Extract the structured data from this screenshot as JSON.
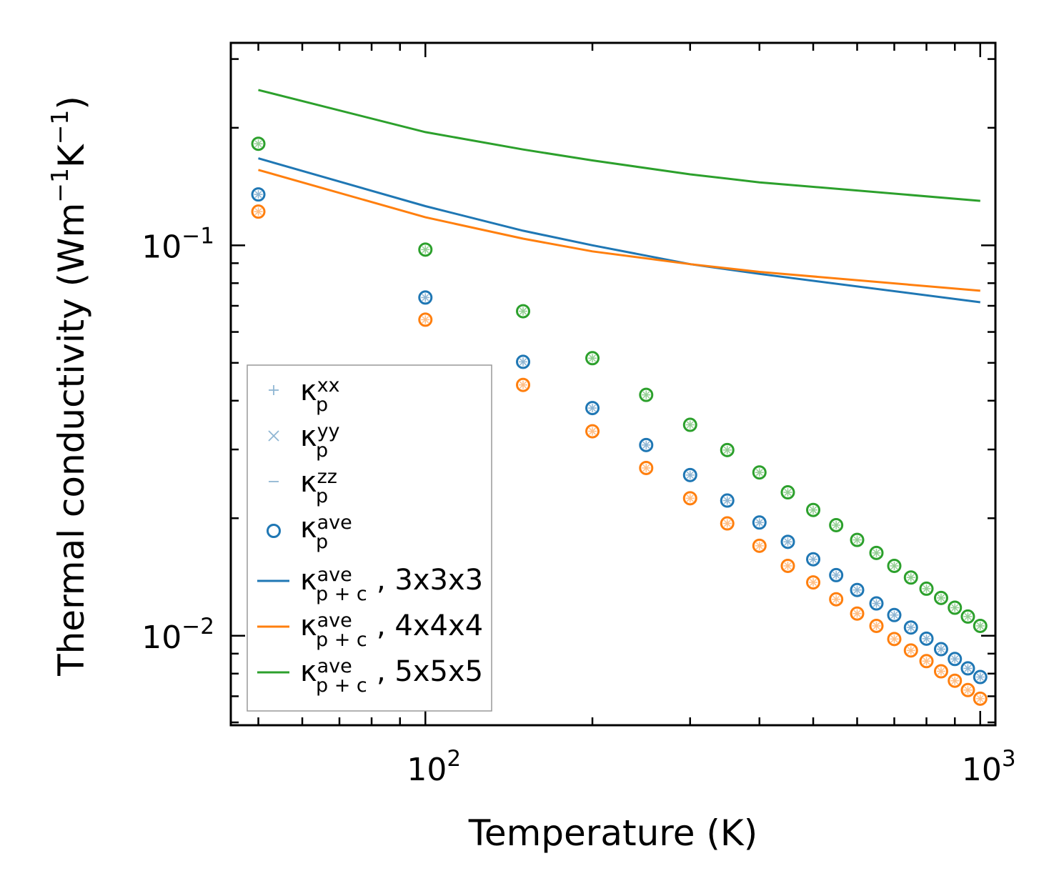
{
  "chart_data": {
    "type": "scatter",
    "xscale": "log",
    "yscale": "log",
    "xlim": [
      44.6,
      1065
    ],
    "ylim": [
      0.0059,
      0.33
    ],
    "xlabel": "Temperature (K)",
    "ylabel": {
      "text": "Thermal conductivity (Wm",
      "sup1": "−1",
      "mid": "K",
      "sup2": "−1",
      "end": ")"
    },
    "xticks": [
      {
        "value": 100,
        "base": "10",
        "exp": "2"
      },
      {
        "value": 1000,
        "base": "10",
        "exp": "3"
      }
    ],
    "yticks": [
      {
        "value": 0.1,
        "base": "10",
        "exp": "−1"
      },
      {
        "value": 0.01,
        "base": "10",
        "exp": "−2"
      }
    ],
    "x": [
      50,
      100,
      150,
      200,
      250,
      300,
      350,
      400,
      450,
      500,
      550,
      600,
      650,
      700,
      750,
      800,
      850,
      900,
      950,
      1000
    ],
    "scatter_series": [
      {
        "name": "3x3x3",
        "color": "#1f77b4",
        "values": [
          0.135,
          0.0735,
          0.0503,
          0.0383,
          0.0308,
          0.0258,
          0.0222,
          0.0195,
          0.0174,
          0.0157,
          0.0143,
          0.0131,
          0.0121,
          0.0113,
          0.0105,
          0.00983,
          0.00924,
          0.00872,
          0.00825,
          0.00784
        ]
      },
      {
        "name": "4x4x4",
        "color": "#ff7f0e",
        "values": [
          0.122,
          0.0645,
          0.0439,
          0.0334,
          0.0269,
          0.0225,
          0.0194,
          0.017,
          0.0151,
          0.0137,
          0.0124,
          0.0114,
          0.0106,
          0.00981,
          0.00917,
          0.00861,
          0.00811,
          0.00767,
          0.00726,
          0.0069
        ]
      },
      {
        "name": "5x5x5",
        "color": "#2ca02c",
        "values": [
          0.182,
          0.0975,
          0.0678,
          0.0514,
          0.0414,
          0.0347,
          0.0299,
          0.0262,
          0.0233,
          0.021,
          0.0192,
          0.0176,
          0.0163,
          0.0151,
          0.0141,
          0.0132,
          0.0125,
          0.0118,
          0.0112,
          0.0106
        ]
      }
    ],
    "lines": [
      {
        "name": "3x3x3",
        "color": "#1f77b4",
        "x": [
          50,
          100,
          150,
          200,
          300,
          400,
          1000
        ],
        "values": [
          0.167,
          0.126,
          0.109,
          0.1,
          0.0895,
          0.0845,
          0.0715
        ]
      },
      {
        "name": "4x4x4",
        "color": "#ff7f0e",
        "x": [
          50,
          100,
          150,
          200,
          300,
          400,
          1000
        ],
        "values": [
          0.156,
          0.118,
          0.104,
          0.0965,
          0.0895,
          0.0855,
          0.0765
        ]
      },
      {
        "name": "5x5x5",
        "color": "#2ca02c",
        "x": [
          50,
          100,
          150,
          200,
          300,
          400,
          1000
        ],
        "values": [
          0.25,
          0.195,
          0.176,
          0.165,
          0.152,
          0.145,
          0.13
        ]
      }
    ],
    "legend": {
      "location": "lower-left",
      "entries": [
        {
          "marker": "plus",
          "color": "#8fb6d3",
          "symbol": "κ",
          "sub": "p",
          "sup": "xx",
          "suffix": ""
        },
        {
          "marker": "x",
          "color": "#8fb6d3",
          "symbol": "κ",
          "sub": "p",
          "sup": "yy",
          "suffix": ""
        },
        {
          "marker": "dash",
          "color": "#8fb6d3",
          "symbol": "κ",
          "sub": "p",
          "sup": "zz",
          "suffix": ""
        },
        {
          "marker": "circle",
          "color": "#1f77b4",
          "symbol": "κ",
          "sub": "p",
          "sup": "ave",
          "suffix": ""
        },
        {
          "marker": "line",
          "color": "#1f77b4",
          "symbol": "κ",
          "sub": "p + c",
          "sup": "ave",
          "suffix": ", 3x3x3"
        },
        {
          "marker": "line",
          "color": "#ff7f0e",
          "symbol": "κ",
          "sub": "p + c",
          "sup": "ave",
          "suffix": ", 4x4x4"
        },
        {
          "marker": "line",
          "color": "#2ca02c",
          "symbol": "κ",
          "sub": "p + c",
          "sup": "ave",
          "suffix": ", 5x5x5"
        }
      ]
    }
  }
}
